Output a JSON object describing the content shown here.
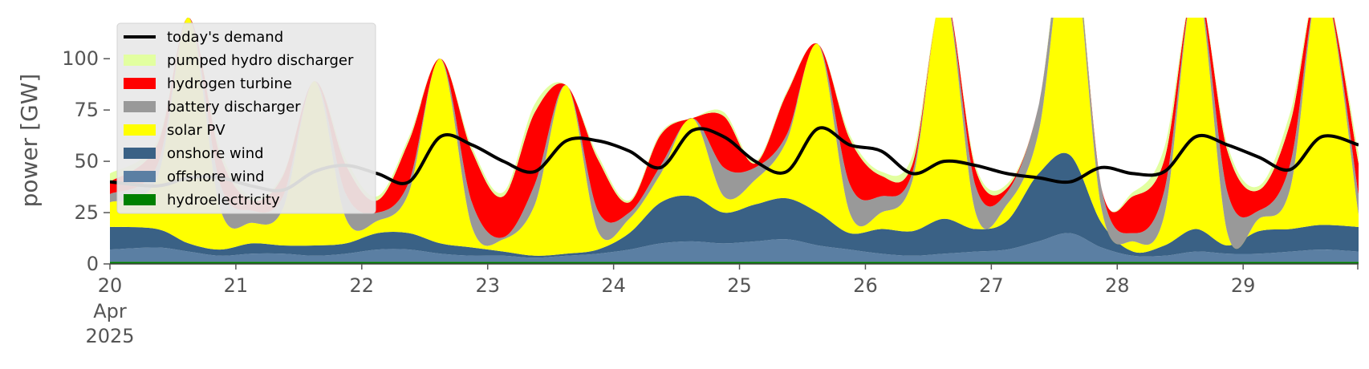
{
  "chart_data": {
    "type": "area",
    "title": "",
    "xlabel": "",
    "ylabel": "power [GW]",
    "xlim": [
      "2025-04-20T00:00",
      "2025-04-29T22:00"
    ],
    "ylim": [
      0,
      120
    ],
    "yticks": [
      0,
      25,
      50,
      75,
      100
    ],
    "xticks": [
      {
        "day": 0,
        "label": "20",
        "sublabels": [
          "Apr",
          "2025"
        ]
      },
      {
        "day": 1,
        "label": "21"
      },
      {
        "day": 2,
        "label": "22"
      },
      {
        "day": 3,
        "label": "23"
      },
      {
        "day": 4,
        "label": "24"
      },
      {
        "day": 5,
        "label": "25"
      },
      {
        "day": 6,
        "label": "26"
      },
      {
        "day": 7,
        "label": "27"
      },
      {
        "day": 8,
        "label": "28"
      },
      {
        "day": 9,
        "label": "29"
      }
    ],
    "grid": false,
    "legend_position": "top-left",
    "stack_order": [
      "hydroelectricity",
      "offshore wind",
      "onshore wind",
      "solar PV",
      "battery discharger",
      "hydrogen turbine",
      "pumped hydro discharger"
    ],
    "day_hours": [
      0,
      6,
      12,
      18
    ],
    "series": [
      {
        "name": "hydroelectricity",
        "color": "#008000",
        "unit": "GW",
        "values": [
          1,
          1,
          1,
          1,
          1,
          1,
          1,
          1,
          1,
          1,
          1,
          1,
          1,
          1,
          1,
          1,
          1,
          1,
          1,
          1,
          1,
          1,
          1,
          1,
          1,
          1,
          1,
          1,
          1,
          1,
          1,
          1,
          1,
          1,
          1,
          1,
          1,
          1,
          1,
          1
        ]
      },
      {
        "name": "offshore wind",
        "color": "#5b7fa3",
        "unit": "GW",
        "values": [
          6,
          7,
          5,
          3,
          4,
          4,
          3,
          4,
          6,
          6,
          4,
          3,
          3,
          2,
          3,
          4,
          6,
          9,
          10,
          9,
          10,
          11,
          8,
          6,
          4,
          3,
          4,
          5,
          6,
          10,
          14,
          7,
          3,
          3,
          5,
          4,
          4,
          5,
          6,
          5
        ]
      },
      {
        "name": "onshore wind",
        "color": "#3a6185",
        "unit": "GW",
        "values": [
          11,
          9,
          4,
          3,
          5,
          4,
          5,
          5,
          8,
          8,
          5,
          4,
          2,
          1,
          1,
          2,
          8,
          20,
          22,
          15,
          18,
          20,
          16,
          8,
          12,
          12,
          17,
          11,
          14,
          33,
          38,
          12,
          2,
          5,
          11,
          4,
          11,
          11,
          12,
          12
        ]
      },
      {
        "name": "solar PV",
        "color": "#ffff00",
        "unit": "GW",
        "values": [
          12,
          25,
          110,
          20,
          10,
          18,
          80,
          12,
          6,
          20,
          90,
          10,
          6,
          25,
          82,
          9,
          7,
          14,
          38,
          8,
          12,
          28,
          82,
          10,
          8,
          25,
          110,
          8,
          8,
          20,
          110,
          7,
          5,
          15,
          120,
          6,
          6,
          20,
          120,
          6
        ]
      },
      {
        "name": "battery discharger",
        "color": "#999999",
        "unit": "GW",
        "values": [
          4,
          6,
          0,
          12,
          6,
          6,
          0,
          12,
          4,
          5,
          0,
          12,
          1,
          10,
          0,
          10,
          3,
          4,
          0,
          14,
          6,
          3,
          0,
          14,
          8,
          4,
          0,
          13,
          6,
          13,
          5,
          10,
          4,
          12,
          0,
          20,
          4,
          12,
          0,
          10
        ]
      },
      {
        "name": "hydrogen turbine",
        "color": "#ff0000",
        "unit": "GW",
        "values": [
          6,
          10,
          0,
          14,
          5,
          10,
          0,
          14,
          6,
          20,
          0,
          25,
          20,
          35,
          0,
          25,
          5,
          15,
          0,
          25,
          2,
          20,
          0,
          22,
          10,
          4,
          0,
          8,
          2,
          0,
          0,
          0,
          18,
          15,
          0,
          20,
          10,
          20,
          0,
          15
        ]
      },
      {
        "name": "pumped hydro discharger",
        "color": "#e2ffa0",
        "unit": "GW",
        "values": [
          4,
          2,
          0,
          3,
          2,
          1,
          0,
          3,
          2,
          2,
          0,
          2,
          2,
          4,
          0,
          2,
          1,
          1,
          0,
          2,
          1,
          1,
          0,
          2,
          2,
          4,
          0,
          2,
          2,
          0,
          4,
          0,
          2,
          6,
          0,
          3,
          2,
          5,
          0,
          5
        ]
      },
      {
        "name": "today's demand",
        "color": "#000000",
        "unit": "GW",
        "type": "line",
        "values": [
          40,
          38,
          42,
          42,
          38,
          36,
          45,
          48,
          44,
          40,
          62,
          58,
          50,
          45,
          60,
          60,
          55,
          47,
          65,
          62,
          50,
          45,
          66,
          58,
          55,
          44,
          50,
          48,
          44,
          42,
          40,
          47,
          44,
          45,
          62,
          58,
          52,
          46,
          62,
          58
        ]
      }
    ],
    "legend": [
      {
        "name": "today's demand",
        "color": "#000000",
        "kind": "line"
      },
      {
        "name": "pumped hydro discharger",
        "color": "#e2ffa0",
        "kind": "patch"
      },
      {
        "name": "hydrogen turbine",
        "color": "#ff0000",
        "kind": "patch"
      },
      {
        "name": "battery discharger",
        "color": "#999999",
        "kind": "patch"
      },
      {
        "name": "solar PV",
        "color": "#ffff00",
        "kind": "patch"
      },
      {
        "name": "onshore wind",
        "color": "#3a6185",
        "kind": "patch"
      },
      {
        "name": "offshore wind",
        "color": "#5b7fa3",
        "kind": "patch"
      },
      {
        "name": "hydroelectricity",
        "color": "#008000",
        "kind": "patch"
      }
    ]
  }
}
